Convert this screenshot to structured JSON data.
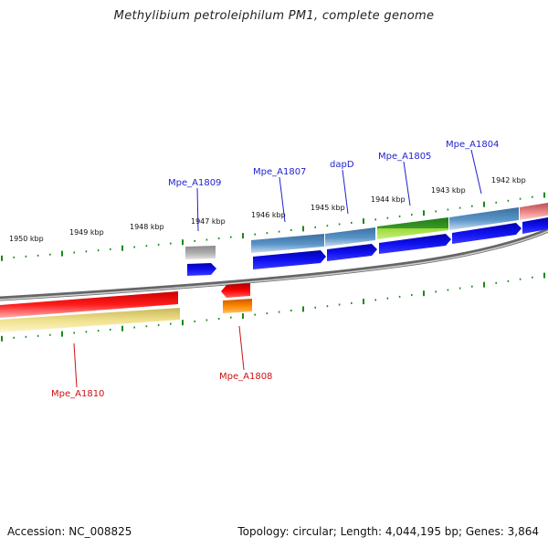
{
  "header": {
    "title": "Methylibium petroleiphilum PM1, complete genome"
  },
  "footer": {
    "accession": "Accession: NC_008825",
    "summary": "Topology: circular; Length: 4,044,195 bp; Genes: 3,864"
  },
  "colors": {
    "backbone": "#7a7a7a",
    "tick": "#1a8a1a",
    "label_forward": "#1f1fcc",
    "label_reverse": "#cc1111",
    "cds_forward": "#0000ee",
    "cds_reverse_red": "#ee0000",
    "cds_reverse_orange": "#ee7700",
    "gene_blue": "#4682b4",
    "gene_grey": "#9a9a9a",
    "gene_green": "#2e8b22",
    "gene_lightgreen": "#aaee44",
    "gene_yellow": "#eedd66",
    "gene_pink": "#f08080"
  },
  "kbp_labels": [
    "1950 kbp",
    "1949 kbp",
    "1948 kbp",
    "1947 kbp",
    "1946 kbp",
    "1945 kbp",
    "1944 kbp",
    "1943 kbp",
    "1942 kbp"
  ],
  "genes_top": [
    {
      "name": "Mpe_A1809"
    },
    {
      "name": "Mpe_A1807"
    },
    {
      "name": "dapD"
    },
    {
      "name": "Mpe_A1805"
    },
    {
      "name": "Mpe_A1804"
    }
  ],
  "genes_bottom": [
    {
      "name": "Mpe_A1810"
    },
    {
      "name": "Mpe_A1808"
    }
  ]
}
